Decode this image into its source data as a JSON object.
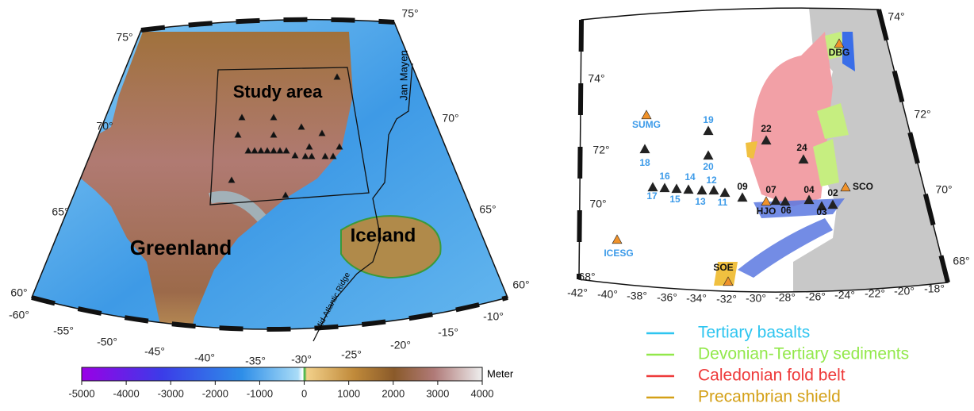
{
  "left_map": {
    "labels": [
      "Study area",
      "Greenland",
      "Iceland",
      "Jan Mayen",
      "Mid-Atlantic Ridge"
    ],
    "lat_labels_left": [
      "75°",
      "70°",
      "65°",
      "60°"
    ],
    "lat_labels_right": [
      "75°",
      "70°",
      "65°",
      "60°"
    ],
    "lon_labels": [
      "-60°",
      "-55°",
      "-50°",
      "-45°",
      "-40°",
      "-35°",
      "-30°",
      "-25°",
      "-20°",
      "-15°",
      "-10°"
    ]
  },
  "colorbar": {
    "unit": "Meter",
    "lim": [
      -5000,
      4000
    ],
    "ticks": [
      -5000,
      -4000,
      -3000,
      -2000,
      -1000,
      0,
      1000,
      2000,
      3000,
      4000
    ]
  },
  "right_map": {
    "lat_labels_left": [
      "74°",
      "72°",
      "70°",
      "68°"
    ],
    "lat_labels_right": [
      "74°",
      "72°",
      "70°",
      "68°"
    ],
    "lon_labels": [
      "-42°",
      "-40°",
      "-38°",
      "-36°",
      "-34°",
      "-32°",
      "-30°",
      "-28°",
      "-26°",
      "-24°",
      "-22°",
      "-20°",
      "-18°"
    ],
    "stations": [
      {
        "name": "SUMG",
        "marker_color": "#f0922a",
        "label_color": "#3d9be9"
      },
      {
        "name": "19",
        "marker_color": "#222222",
        "label_color": "#3d9be9"
      },
      {
        "name": "18",
        "marker_color": "#222222",
        "label_color": "#3d9be9"
      },
      {
        "name": "20",
        "marker_color": "#222222",
        "label_color": "#3d9be9"
      },
      {
        "name": "16",
        "marker_color": "#222222",
        "label_color": "#3d9be9"
      },
      {
        "name": "14",
        "marker_color": "#222222",
        "label_color": "#3d9be9"
      },
      {
        "name": "12",
        "marker_color": "#222222",
        "label_color": "#3d9be9"
      },
      {
        "name": "17",
        "marker_color": "#222222",
        "label_color": "#3d9be9"
      },
      {
        "name": "15",
        "marker_color": "#222222",
        "label_color": "#3d9be9"
      },
      {
        "name": "13",
        "marker_color": "#222222",
        "label_color": "#3d9be9"
      },
      {
        "name": "11",
        "marker_color": "#222222",
        "label_color": "#3d9be9"
      },
      {
        "name": "ICESG",
        "marker_color": "#f0922a",
        "label_color": "#3d9be9"
      },
      {
        "name": "09",
        "marker_color": "#222222",
        "label_color": "#111111"
      },
      {
        "name": "07",
        "marker_color": "#222222",
        "label_color": "#111111"
      },
      {
        "name": "HJO",
        "marker_color": "#f0922a",
        "label_color": "#111111"
      },
      {
        "name": "06",
        "marker_color": "#222222",
        "label_color": "#111111"
      },
      {
        "name": "04",
        "marker_color": "#222222",
        "label_color": "#111111"
      },
      {
        "name": "02",
        "marker_color": "#222222",
        "label_color": "#111111"
      },
      {
        "name": "03",
        "marker_color": "#222222",
        "label_color": "#111111"
      },
      {
        "name": "SCO",
        "marker_color": "#f0922a",
        "label_color": "#111111"
      },
      {
        "name": "22",
        "marker_color": "#222222",
        "label_color": "#111111"
      },
      {
        "name": "24",
        "marker_color": "#222222",
        "label_color": "#111111"
      },
      {
        "name": "DBG",
        "marker_color": "#f0922a",
        "label_color": "#111111"
      },
      {
        "name": "SOE",
        "marker_color": "#f0922a",
        "label_color": "#111111"
      }
    ]
  },
  "legend": [
    {
      "label": "Tertiary basalts",
      "color": "#2ec5f0"
    },
    {
      "label": "Devonian-Tertiary sediments",
      "color": "#92e84a"
    },
    {
      "label": "Caledonian fold belt",
      "color": "#ee3a3a"
    },
    {
      "label": "Precambrian shield",
      "color": "#d4a017"
    }
  ]
}
